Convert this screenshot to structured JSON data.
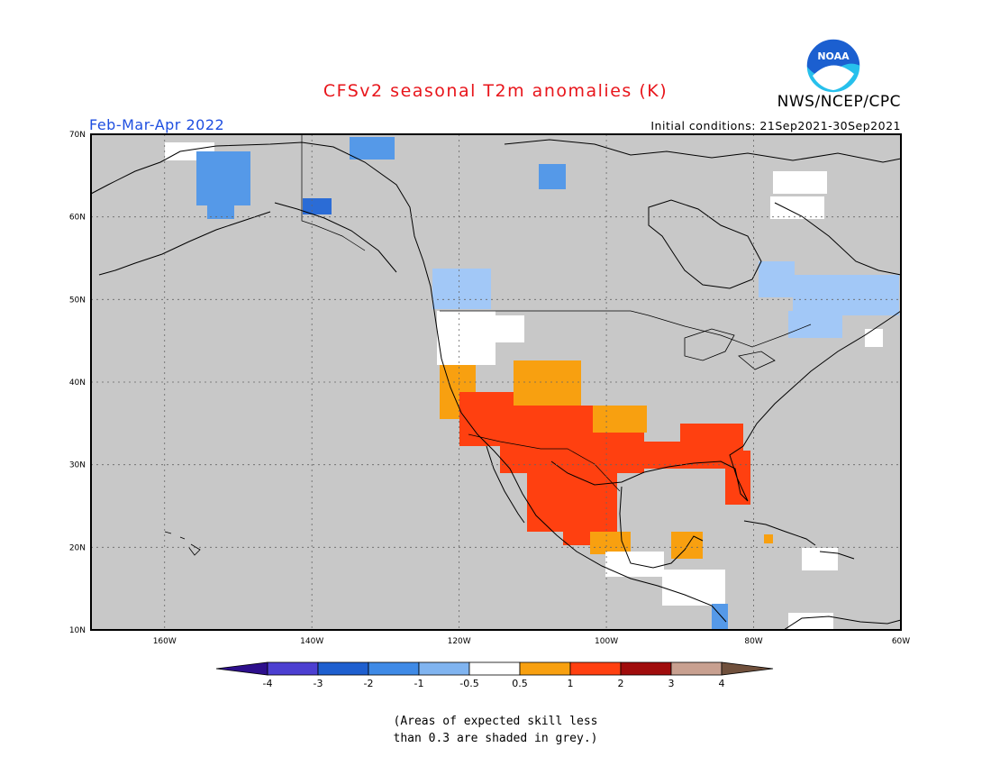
{
  "header": {
    "title": "CFSv2 seasonal T2m anomalies (K)",
    "agency": "NWS/NCEP/CPC",
    "season": "Feb-Mar-Apr 2022",
    "initial_conditions": "Initial conditions: 21Sep2021-30Sep2021",
    "logo_text": "NOAA"
  },
  "map": {
    "background_color": "#c8c8c8",
    "lat_labels": [
      "70N",
      "60N",
      "50N",
      "40N",
      "30N",
      "20N",
      "10N"
    ],
    "lon_labels": [
      "160W",
      "140W",
      "120W",
      "100W",
      "80W",
      "60W"
    ],
    "lat_range": [
      10,
      70
    ],
    "lon_range": [
      -170,
      -60
    ]
  },
  "colorbar": {
    "tick_labels": [
      "-4",
      "-3",
      "-2",
      "-1",
      "-0.5",
      "0.5",
      "1",
      "2",
      "3",
      "4"
    ],
    "colors": [
      "#2d0f8c",
      "#4c3fd1",
      "#1e5fcf",
      "#3f8ae6",
      "#80b4f0",
      "#ffffff",
      "#f8a010",
      "#ff4010",
      "#a00c0c",
      "#c8a090",
      "#70503c"
    ]
  },
  "anomaly_colors": {
    "weak_cold": "#a2c8f7",
    "cold": "#5599e8",
    "strong_cold": "#2b6cd6",
    "neutral": "#ffffff",
    "weak_warm": "#f8a010",
    "warm": "#ff4010"
  },
  "footnote": {
    "line1": "(Areas of expected skill less",
    "line2": "than 0.3 are shaded in grey.)"
  }
}
